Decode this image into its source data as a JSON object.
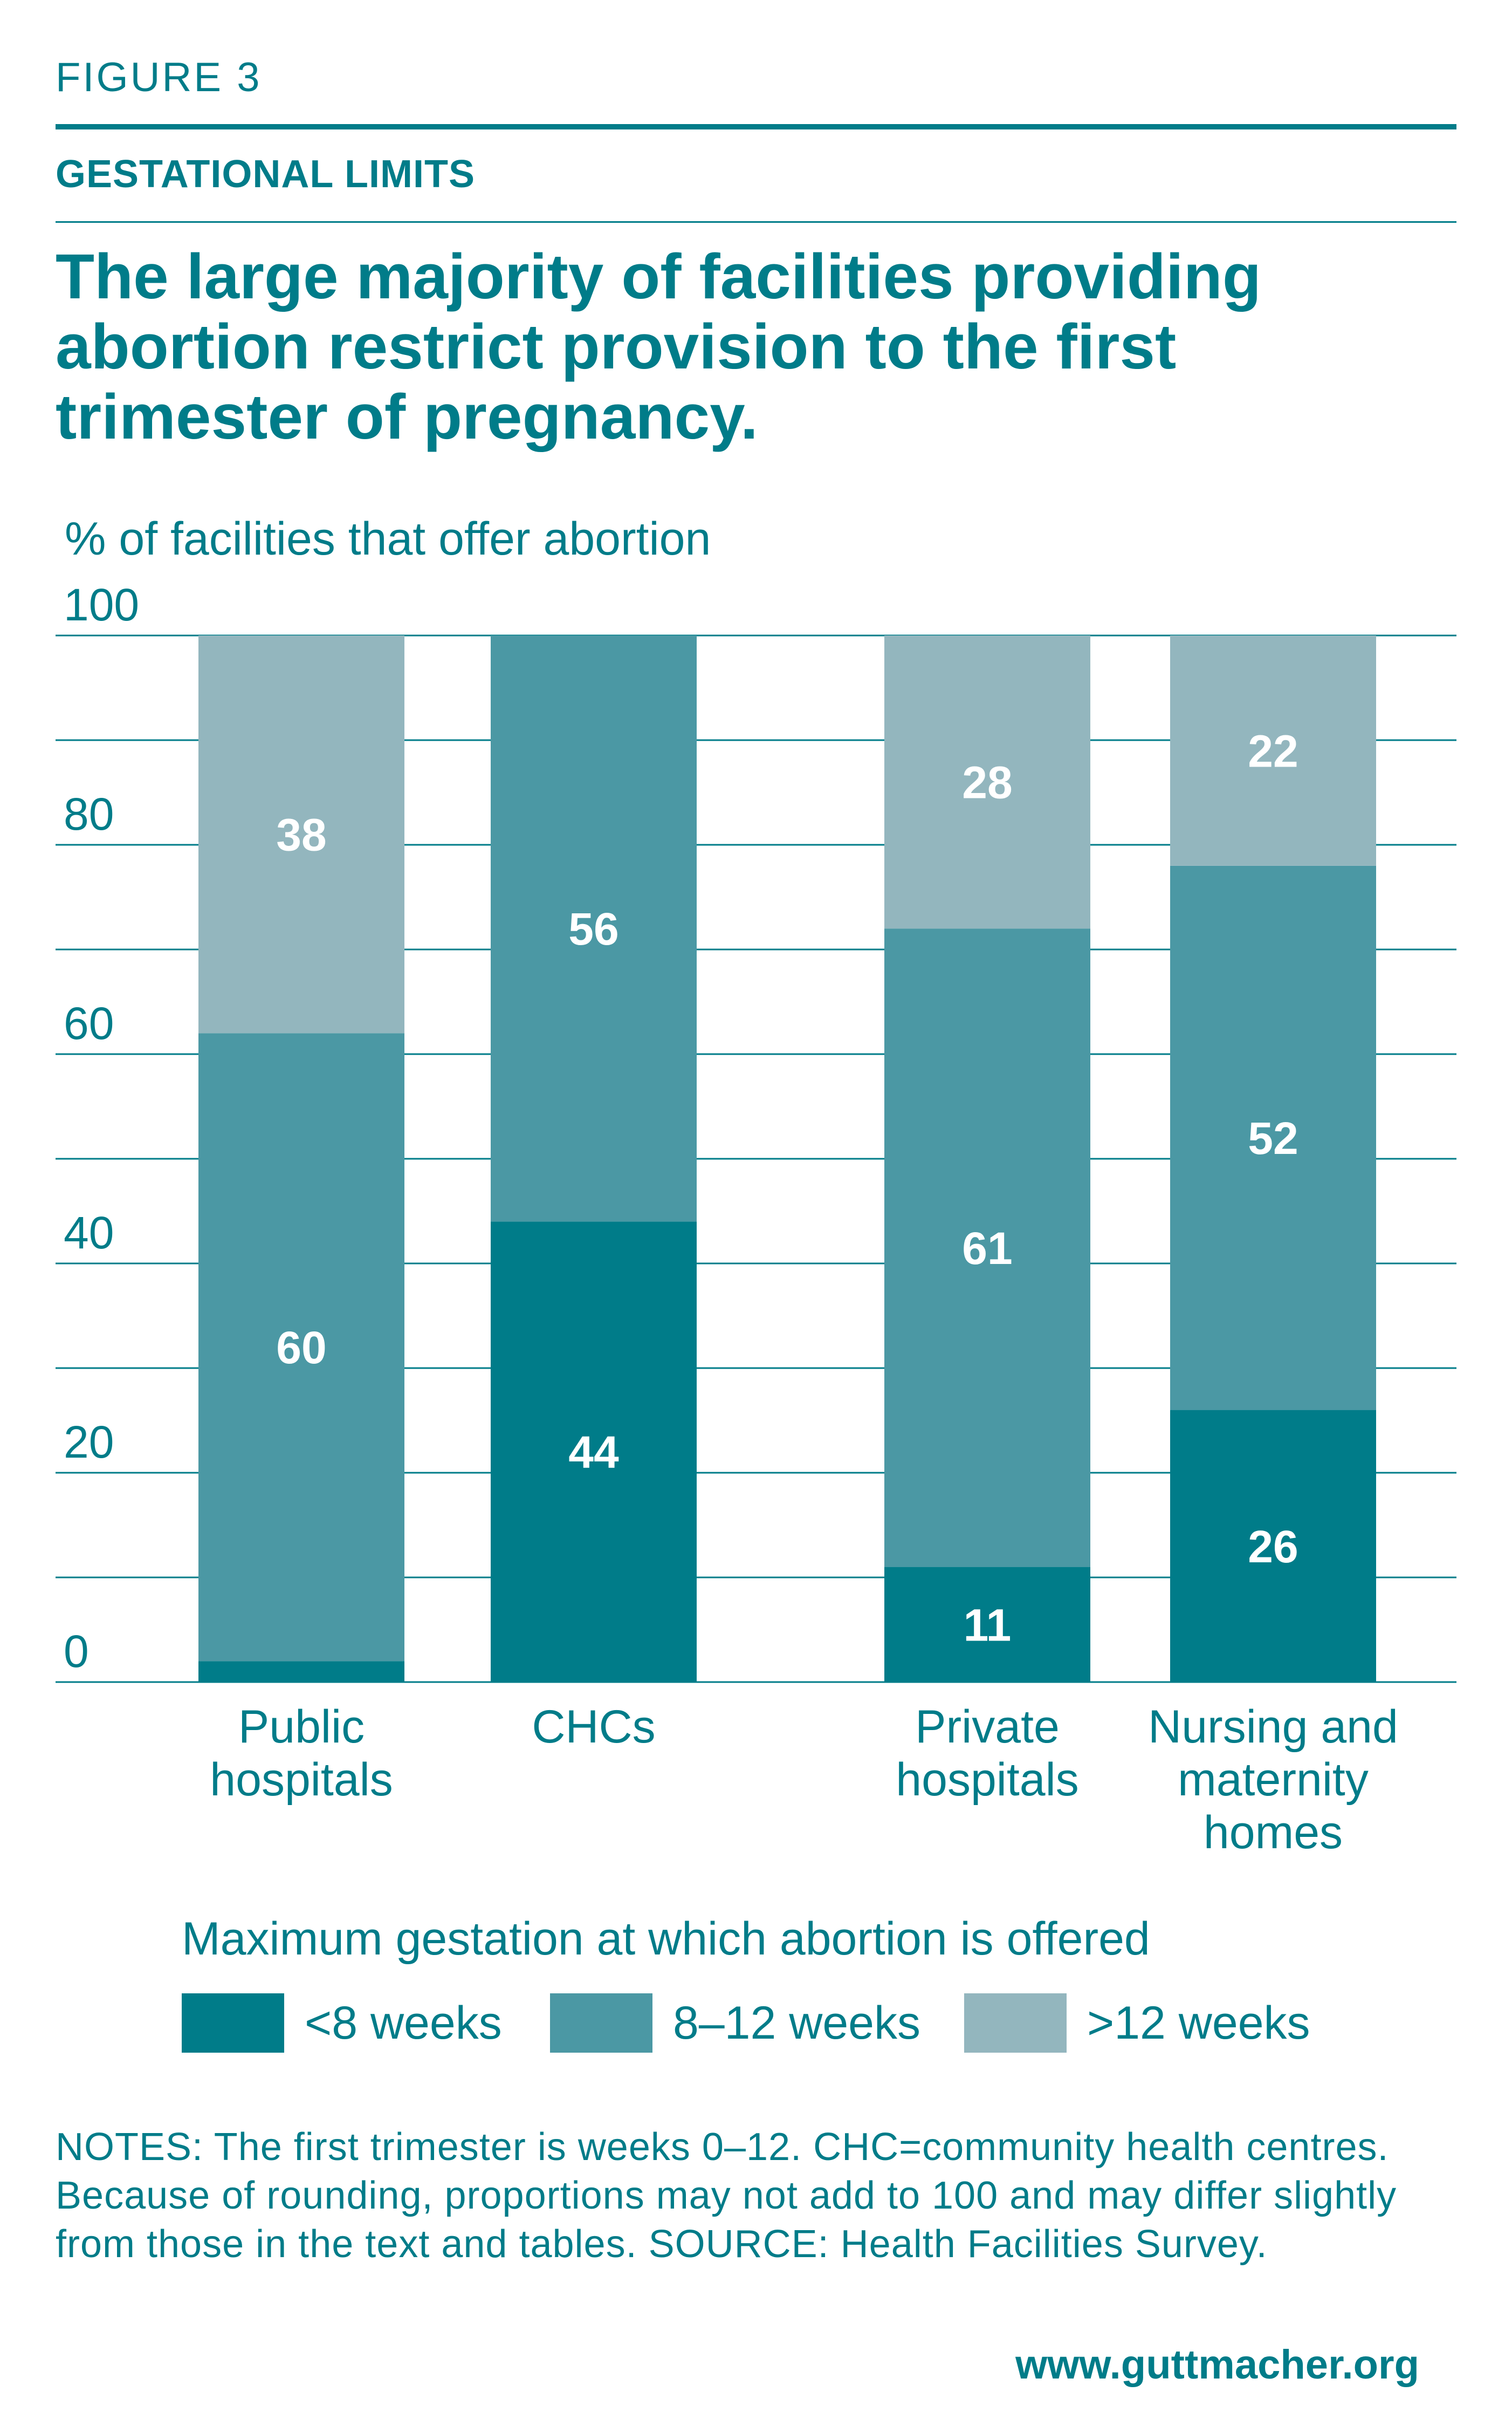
{
  "figure_label": "FIGURE 3",
  "section_label": "GESTATIONAL LIMITS",
  "headline": "The large majority of facilities providing abortion restrict provision to the first trimester of pregnancy.",
  "colors": {
    "lt8": "#007C89",
    "w8to12": "#4B98A4",
    "gt12": "#93B6BE",
    "text": "#007C89",
    "grid": "#007C89"
  },
  "chart_data": {
    "type": "bar",
    "stacked": true,
    "ylabel": "% of facilities that offer abortion",
    "ylim": [
      0,
      100
    ],
    "yticks": [
      "0",
      "20",
      "40",
      "60",
      "80",
      "100"
    ],
    "grid": true,
    "categories": [
      [
        "Public",
        "hospitals"
      ],
      [
        "CHCs"
      ],
      [
        "Private",
        "hospitals"
      ],
      [
        "Nursing and",
        "maternity",
        "homes"
      ]
    ],
    "series": [
      {
        "name": "<8 weeks",
        "values": [
          2,
          44,
          11,
          26
        ],
        "labels": [
          "",
          "44",
          "11",
          "26"
        ]
      },
      {
        "name": "8–12 weeks",
        "values": [
          60,
          56,
          61,
          52
        ],
        "labels": [
          "60",
          "56",
          "61",
          "52"
        ]
      },
      {
        "name": ">12 weeks",
        "values": [
          38,
          0,
          28,
          22
        ],
        "labels": [
          "38",
          "",
          "28",
          "22"
        ]
      }
    ],
    "legend_title": "Maximum gestation at which abortion is offered",
    "legend_position": "bottom"
  },
  "notes": "NOTES: The first trimester is weeks 0–12. CHC=community health centres. Because of rounding, proportions may not add to 100 and may differ slightly from those in the text and tables. SOURCE: Health Facilities Survey.",
  "source_url": "www.guttmacher.org"
}
